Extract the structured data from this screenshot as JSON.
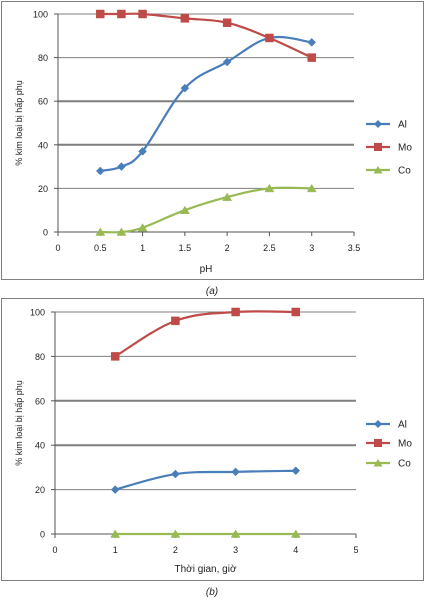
{
  "chart_data": [
    {
      "type": "line",
      "caption": "(a)",
      "xlabel": "pH",
      "ylabel": "% kim loại bị hấp phụ",
      "xlim": [
        0,
        3.5
      ],
      "ylim": [
        0,
        100
      ],
      "xticks": [
        "0",
        "0.5",
        "1",
        "1.5",
        "2",
        "2.5",
        "3",
        "3.5"
      ],
      "yticks": [
        "0",
        "20",
        "40",
        "60",
        "80",
        "100"
      ],
      "grid": "horizontal",
      "legend_position": "right",
      "series": [
        {
          "name": "Al",
          "color": "#4a7ebb",
          "marker": "diamond",
          "x": [
            0.5,
            0.75,
            1,
            1.5,
            2,
            2.5,
            3
          ],
          "y": [
            28,
            30,
            37,
            66,
            78,
            89,
            87
          ]
        },
        {
          "name": "Mo",
          "color": "#be4b48",
          "marker": "square",
          "x": [
            0.5,
            0.75,
            1,
            1.5,
            2,
            2.5,
            3
          ],
          "y": [
            100,
            100,
            100,
            98,
            96,
            89,
            80
          ]
        },
        {
          "name": "Co",
          "color": "#98b954",
          "marker": "triangle",
          "x": [
            0.5,
            0.75,
            1,
            1.5,
            2,
            2.5,
            3
          ],
          "y": [
            0,
            0,
            2,
            10,
            16,
            20,
            20
          ]
        }
      ]
    },
    {
      "type": "line",
      "caption": "(b)",
      "xlabel": "Thời gian, giờ",
      "ylabel": "% kim loại bị hấp phụ",
      "xlim": [
        0,
        5
      ],
      "ylim": [
        0,
        100
      ],
      "xticks": [
        "0",
        "1",
        "2",
        "3",
        "4",
        "5"
      ],
      "yticks": [
        "0",
        "20",
        "40",
        "60",
        "80",
        "100"
      ],
      "grid": "horizontal",
      "legend_position": "right",
      "series": [
        {
          "name": "Al",
          "color": "#4a7ebb",
          "marker": "diamond",
          "x": [
            1,
            2,
            3,
            4
          ],
          "y": [
            20,
            27,
            28,
            28.5
          ]
        },
        {
          "name": "Mo",
          "color": "#be4b48",
          "marker": "square",
          "x": [
            1,
            2,
            3,
            4
          ],
          "y": [
            80,
            96,
            100,
            100
          ]
        },
        {
          "name": "Co",
          "color": "#98b954",
          "marker": "triangle",
          "x": [
            1,
            2,
            3,
            4
          ],
          "y": [
            0,
            0,
            0,
            0
          ]
        }
      ]
    }
  ]
}
